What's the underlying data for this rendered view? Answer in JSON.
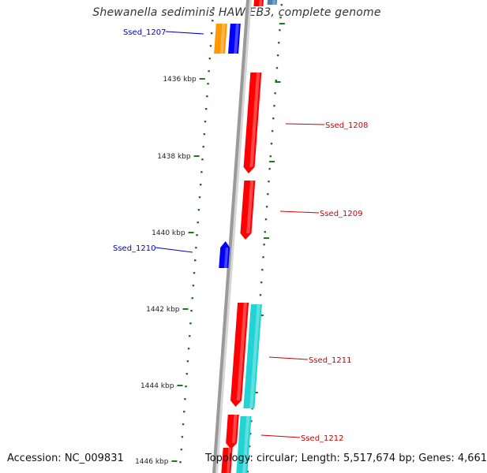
{
  "title": "Shewanella sediminis HAW-EB3, complete genome",
  "accession": "Accession: NC_009831",
  "summary": "Topology: circular; Length: 5,517,674 bp; Genes: 4,661",
  "colors": {
    "backbone": "#9a9a9a",
    "tick": "#1a7a1a",
    "plus_label": "#cc0000",
    "minus_label": "#0000cc",
    "red": "#ff0000",
    "blue": "#0000ff",
    "cyan": "#22d3d3",
    "orange": "#ff9900",
    "steel": "#4682b4"
  },
  "kbp_ticks": [
    {
      "label": "1436 kbp"
    },
    {
      "label": "1438 kbp"
    },
    {
      "label": "1440 kbp"
    },
    {
      "label": "1442 kbp"
    },
    {
      "label": "1444 kbp"
    },
    {
      "label": "1446 kbp"
    }
  ],
  "gene_labels": [
    {
      "name": "Ssed_1207",
      "strand": "minus"
    },
    {
      "name": "Ssed_1208",
      "strand": "plus"
    },
    {
      "name": "Ssed_1209",
      "strand": "plus"
    },
    {
      "name": "Ssed_1210",
      "strand": "minus"
    },
    {
      "name": "Ssed_1211",
      "strand": "plus"
    },
    {
      "name": "Ssed_1212",
      "strand": "plus"
    }
  ]
}
